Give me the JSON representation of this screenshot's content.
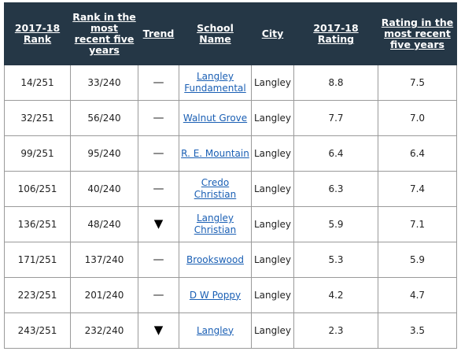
{
  "headers": {
    "rank": "2017-18 Rank",
    "rank_five": "Rank in the most recent five years",
    "trend": "Trend",
    "school": "School Name",
    "city": "City",
    "rating": "2017-18 Rating",
    "rating_five": "Rating in the most recent five years"
  },
  "rows": [
    {
      "rank": "14/251",
      "rank_five": "33/240",
      "trend": "—",
      "trend_type": "flat",
      "school": "Langley Fundamental",
      "city": "Langley",
      "rating": "8.8",
      "rating_five": "7.5"
    },
    {
      "rank": "32/251",
      "rank_five": "56/240",
      "trend": "—",
      "trend_type": "flat",
      "school": "Walnut Grove",
      "city": "Langley",
      "rating": "7.7",
      "rating_five": "7.0"
    },
    {
      "rank": "99/251",
      "rank_five": "95/240",
      "trend": "—",
      "trend_type": "flat",
      "school": "R. E. Mountain",
      "city": "Langley",
      "rating": "6.4",
      "rating_five": "6.4"
    },
    {
      "rank": "106/251",
      "rank_five": "40/240",
      "trend": "—",
      "trend_type": "flat",
      "school": "Credo Christian",
      "city": "Langley",
      "rating": "6.3",
      "rating_five": "7.4"
    },
    {
      "rank": "136/251",
      "rank_five": "48/240",
      "trend": "▼",
      "trend_type": "down",
      "school": "Langley Christian",
      "city": "Langley",
      "rating": "5.9",
      "rating_five": "7.1"
    },
    {
      "rank": "171/251",
      "rank_five": "137/240",
      "trend": "—",
      "trend_type": "flat",
      "school": "Brookswood",
      "city": "Langley",
      "rating": "5.3",
      "rating_five": "5.9"
    },
    {
      "rank": "223/251",
      "rank_five": "201/240",
      "trend": "—",
      "trend_type": "flat",
      "school": "D W Poppy",
      "city": "Langley",
      "rating": "4.2",
      "rating_five": "4.7"
    },
    {
      "rank": "243/251",
      "rank_five": "232/240",
      "trend": "▼",
      "trend_type": "down",
      "school": "Langley",
      "city": "Langley",
      "rating": "2.3",
      "rating_five": "3.5"
    }
  ],
  "colors": {
    "header_bg": "#253746",
    "header_text": "#ffffff",
    "link": "#1a5fb4",
    "border": "#9a9a9a"
  }
}
